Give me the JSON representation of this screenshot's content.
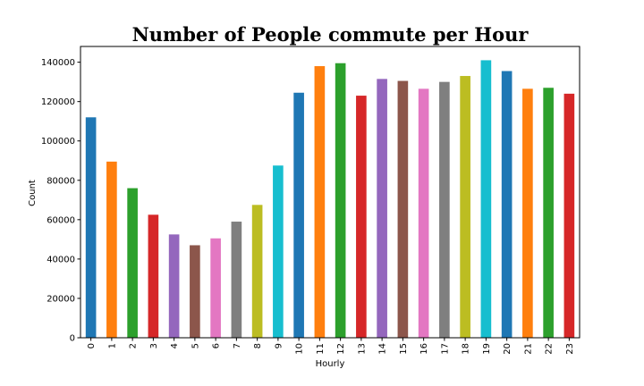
{
  "chart_data": {
    "type": "bar",
    "title": "Number of People commute per Hour",
    "xlabel": "Hourly",
    "ylabel": "Count",
    "categories": [
      "0",
      "1",
      "2",
      "3",
      "4",
      "5",
      "6",
      "7",
      "8",
      "9",
      "10",
      "11",
      "12",
      "13",
      "14",
      "15",
      "16",
      "17",
      "18",
      "19",
      "20",
      "21",
      "22",
      "23"
    ],
    "values": [
      112000,
      89500,
      76000,
      62500,
      52500,
      47000,
      50500,
      59000,
      67500,
      87500,
      124500,
      138000,
      139500,
      123000,
      131500,
      130500,
      126500,
      130000,
      133000,
      141000,
      135500,
      126500,
      127000,
      124000
    ],
    "colors": [
      "#1f77b4",
      "#ff7f0e",
      "#2ca02c",
      "#d62728",
      "#9467bd",
      "#8c564b",
      "#e377c2",
      "#7f7f7f",
      "#bcbd22",
      "#17becf",
      "#1f77b4",
      "#ff7f0e",
      "#2ca02c",
      "#d62728",
      "#9467bd",
      "#8c564b",
      "#e377c2",
      "#7f7f7f",
      "#bcbd22",
      "#17becf",
      "#1f77b4",
      "#ff7f0e",
      "#2ca02c",
      "#d62728"
    ],
    "ylim": [
      0,
      148000
    ],
    "yticks": [
      0,
      20000,
      40000,
      60000,
      80000,
      100000,
      120000,
      140000
    ],
    "ytick_labels": [
      "0",
      "20000",
      "40000",
      "60000",
      "80000",
      "100000",
      "120000",
      "140000"
    ],
    "grid": false,
    "legend": "none"
  }
}
